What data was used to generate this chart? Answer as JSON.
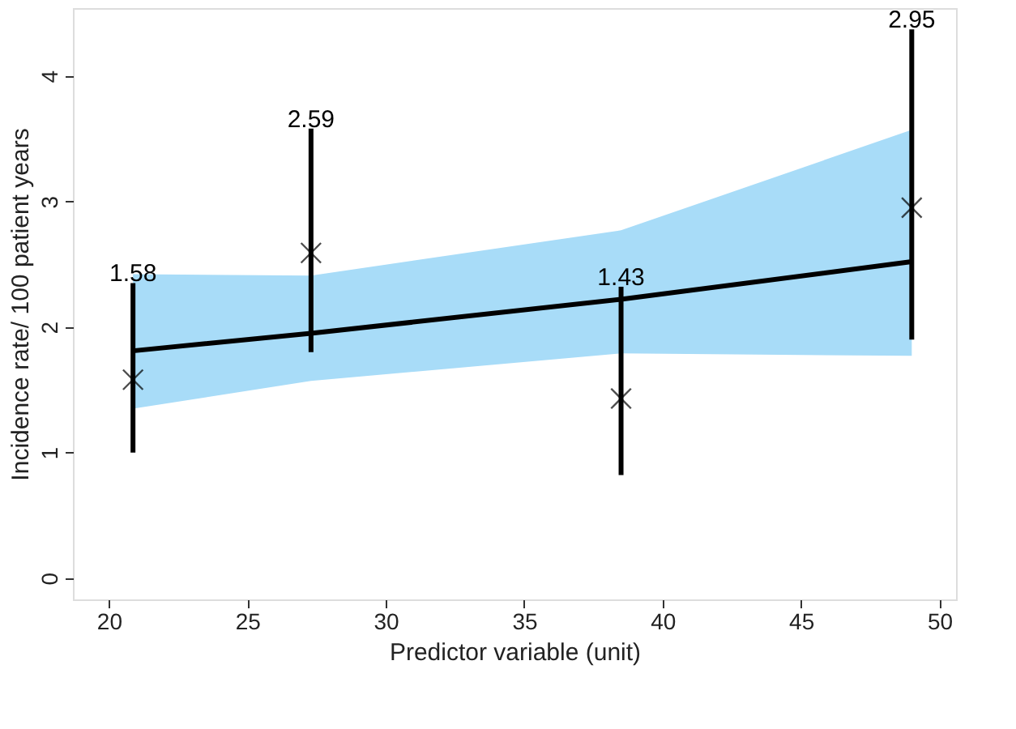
{
  "chart_data": {
    "type": "scatter",
    "xlabel": "Predictor variable (unit)",
    "ylabel": "Incidence rate/ 100 patient years",
    "xlim": [
      18.7,
      50.6
    ],
    "xticks": [
      20,
      25,
      30,
      35,
      40,
      45,
      50
    ],
    "ylim": [
      -0.17,
      4.54
    ],
    "yticks": [
      0,
      1,
      2,
      3,
      4
    ],
    "grid": false,
    "annotations": [
      {
        "text": "1.58",
        "x": 20.87,
        "y": 2.35
      },
      {
        "text": "2.59",
        "x": 27.3,
        "y": 3.58
      },
      {
        "text": "1.43",
        "x": 38.5,
        "y": 2.32
      },
      {
        "text": "2.95",
        "x": 49.0,
        "y": 4.37
      }
    ],
    "series": [
      {
        "type": "line",
        "color": "#000000",
        "x": [
          20.87,
          27.3,
          38.5,
          49.0
        ],
        "values": [
          1.81,
          1.95,
          2.22,
          2.52
        ],
        "lower": [
          1.35,
          1.57,
          1.79,
          1.77
        ],
        "upper": [
          2.42,
          2.41,
          2.77,
          3.57
        ]
      },
      {
        "marker": "cross",
        "color": "#000000",
        "x": [
          20.87,
          27.3,
          38.5,
          49.0
        ],
        "values": [
          1.58,
          2.59,
          1.43,
          2.95
        ],
        "errors": [
          [
            1.0,
            2.35
          ],
          [
            1.8,
            3.58
          ],
          [
            0.82,
            2.32
          ],
          [
            1.9,
            4.37
          ]
        ]
      }
    ]
  }
}
